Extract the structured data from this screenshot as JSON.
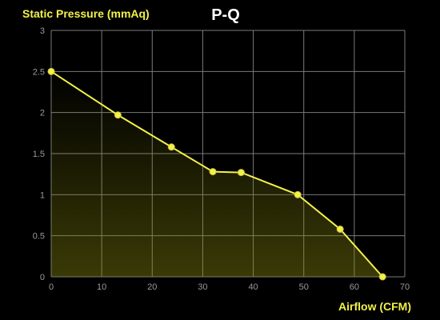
{
  "chart_data": {
    "type": "line",
    "title": "P-Q",
    "xlabel": "Airflow (CFM)",
    "ylabel": "Static Pressure (mmAq)",
    "xlim": [
      0,
      70
    ],
    "ylim": [
      0,
      3
    ],
    "xticks": [
      0,
      10,
      20,
      30,
      40,
      50,
      60,
      70
    ],
    "yticks": [
      0,
      0.5,
      1,
      1.5,
      2,
      2.5,
      3
    ],
    "grid": true,
    "series": [
      {
        "x": [
          0,
          13.2,
          23.8,
          32.0,
          37.6,
          48.8,
          57.2,
          65.6
        ],
        "y": [
          2.5,
          1.97,
          1.58,
          1.28,
          1.27,
          1.0,
          0.58,
          0.0
        ]
      }
    ],
    "colors": {
      "background": "#000000",
      "grid": "#7a7a7a",
      "tick_text": "#9a9a9a",
      "line": "#f4f04a",
      "label": "#f4f04a",
      "title": "#ffffff",
      "fill": "#8a8a10"
    }
  }
}
